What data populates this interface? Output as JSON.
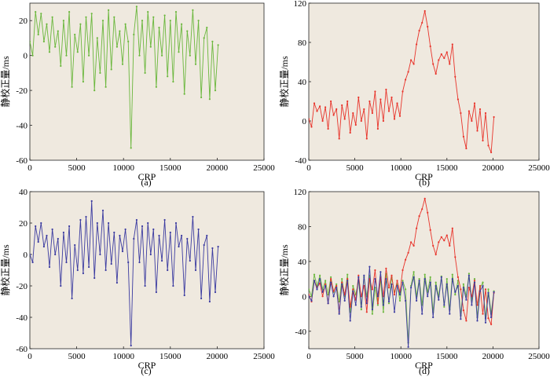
{
  "figure": {
    "captions": [
      "(a)",
      "(b)",
      "(c)",
      "(d)"
    ]
  },
  "chart_data": [
    {
      "type": "line",
      "panel": "(a)",
      "title": "",
      "xlabel": "CRP",
      "ylabel": "静校正量/ms",
      "xlim": [
        0,
        25000
      ],
      "ylim": [
        -60,
        30
      ],
      "xticks": [
        0,
        5000,
        10000,
        15000,
        20000,
        25000
      ],
      "yticks": [
        -60,
        -40,
        -20,
        0,
        20
      ],
      "grid": false,
      "series": [
        {
          "name": "a",
          "color": "#6ab73c",
          "x": [
            0,
            300,
            600,
            900,
            1200,
            1500,
            1800,
            2100,
            2400,
            2700,
            3000,
            3300,
            3600,
            3900,
            4200,
            4500,
            4800,
            5100,
            5400,
            5700,
            6000,
            6300,
            6600,
            6900,
            7200,
            7500,
            7800,
            8100,
            8400,
            8700,
            9000,
            9300,
            9600,
            9900,
            10200,
            10500,
            10800,
            11100,
            11400,
            11700,
            12000,
            12300,
            12600,
            12900,
            13200,
            13500,
            13800,
            14100,
            14400,
            14700,
            15000,
            15300,
            15600,
            15900,
            16200,
            16500,
            16800,
            17100,
            17400,
            17700,
            18000,
            18300,
            18600,
            18900,
            19200,
            19500,
            19800,
            20100
          ],
          "y": [
            8,
            0,
            25,
            12,
            24,
            8,
            18,
            2,
            22,
            5,
            14,
            -6,
            20,
            0,
            25,
            -18,
            12,
            2,
            18,
            -15,
            22,
            0,
            24,
            -20,
            10,
            -10,
            20,
            -18,
            26,
            -8,
            22,
            5,
            14,
            -5,
            18,
            8,
            -53,
            12,
            28,
            0,
            20,
            -10,
            25,
            5,
            22,
            -18,
            16,
            0,
            23,
            -12,
            20,
            -15,
            25,
            2,
            18,
            -22,
            14,
            0,
            26,
            -5,
            20,
            -24,
            10,
            16,
            -25,
            8,
            -20,
            6
          ]
        }
      ]
    },
    {
      "type": "line",
      "panel": "(b)",
      "title": "",
      "xlabel": "CRP",
      "ylabel": "静校正量/ms",
      "xlim": [
        0,
        25000
      ],
      "ylim": [
        -40,
        120
      ],
      "xticks": [
        0,
        5000,
        10000,
        15000,
        20000,
        25000
      ],
      "yticks": [
        -40,
        0,
        40,
        80,
        120
      ],
      "grid": false,
      "series": [
        {
          "name": "b",
          "color": "#e8332a",
          "x": [
            0,
            300,
            600,
            900,
            1200,
            1500,
            1800,
            2100,
            2400,
            2700,
            3000,
            3300,
            3600,
            3900,
            4200,
            4500,
            4800,
            5100,
            5400,
            5700,
            6000,
            6300,
            6600,
            6900,
            7200,
            7500,
            7800,
            8100,
            8400,
            8700,
            9000,
            9300,
            9600,
            9900,
            10200,
            10500,
            10800,
            11100,
            11400,
            11700,
            12000,
            12300,
            12600,
            12900,
            13200,
            13500,
            13800,
            14100,
            14400,
            14700,
            15000,
            15300,
            15600,
            15900,
            16200,
            16500,
            16800,
            17100,
            17400,
            17700,
            18000,
            18300,
            18600,
            18900,
            19200,
            19500,
            19800,
            20100
          ],
          "y": [
            2,
            -6,
            18,
            10,
            15,
            0,
            14,
            -8,
            20,
            6,
            12,
            -18,
            16,
            2,
            20,
            -12,
            8,
            -4,
            24,
            0,
            12,
            -18,
            20,
            8,
            30,
            -8,
            22,
            0,
            32,
            10,
            24,
            2,
            18,
            5,
            30,
            42,
            50,
            62,
            58,
            78,
            92,
            100,
            112,
            96,
            76,
            58,
            48,
            62,
            68,
            64,
            70,
            58,
            78,
            45,
            22,
            8,
            -16,
            -28,
            10,
            0,
            18,
            -10,
            12,
            -20,
            8,
            -25,
            -32,
            4
          ]
        }
      ]
    },
    {
      "type": "line",
      "panel": "(c)",
      "title": "",
      "xlabel": "CRP",
      "ylabel": "静校正量/ms",
      "xlim": [
        0,
        25000
      ],
      "ylim": [
        -60,
        40
      ],
      "xticks": [
        0,
        5000,
        10000,
        15000,
        20000,
        25000
      ],
      "yticks": [
        -60,
        -40,
        -20,
        0,
        20,
        40
      ],
      "grid": false,
      "series": [
        {
          "name": "c",
          "color": "#3a3aa0",
          "x": [
            0,
            300,
            600,
            900,
            1200,
            1500,
            1800,
            2100,
            2400,
            2700,
            3000,
            3300,
            3600,
            3900,
            4200,
            4500,
            4800,
            5100,
            5400,
            5700,
            6000,
            6300,
            6600,
            6900,
            7200,
            7500,
            7800,
            8100,
            8400,
            8700,
            9000,
            9300,
            9600,
            9900,
            10200,
            10500,
            10800,
            11100,
            11400,
            11700,
            12000,
            12300,
            12600,
            12900,
            13200,
            13500,
            13800,
            14100,
            14400,
            14700,
            15000,
            15300,
            15600,
            15900,
            16200,
            16500,
            16800,
            17100,
            17400,
            17700,
            18000,
            18300,
            18600,
            18900,
            19200,
            19500,
            19800,
            20100
          ],
          "y": [
            0,
            -5,
            18,
            8,
            20,
            5,
            12,
            -8,
            16,
            0,
            10,
            -20,
            14,
            -5,
            18,
            -28,
            6,
            -10,
            22,
            -12,
            24,
            -8,
            34,
            -15,
            20,
            0,
            28,
            -10,
            20,
            -6,
            14,
            -18,
            12,
            2,
            16,
            -5,
            -58,
            10,
            22,
            -5,
            18,
            -20,
            20,
            0,
            16,
            -24,
            12,
            -4,
            22,
            -10,
            14,
            -20,
            20,
            5,
            12,
            -26,
            10,
            -4,
            24,
            -10,
            16,
            -28,
            6,
            12,
            -30,
            4,
            -24,
            5
          ]
        }
      ]
    },
    {
      "type": "line",
      "panel": "(d)",
      "title": "",
      "xlabel": "CRP",
      "ylabel": "静校正量/ms",
      "xlim": [
        0,
        25000
      ],
      "ylim": [
        -60,
        120
      ],
      "xticks": [
        0,
        5000,
        10000,
        15000,
        20000,
        25000
      ],
      "yticks": [
        -40,
        0,
        40,
        80,
        120
      ],
      "grid": false,
      "series": [
        {
          "name": "a",
          "ref": 0,
          "color": "#6ab73c"
        },
        {
          "name": "b",
          "ref": 1,
          "color": "#e8332a"
        },
        {
          "name": "c",
          "ref": 2,
          "color": "#3a3aa0"
        }
      ]
    }
  ]
}
